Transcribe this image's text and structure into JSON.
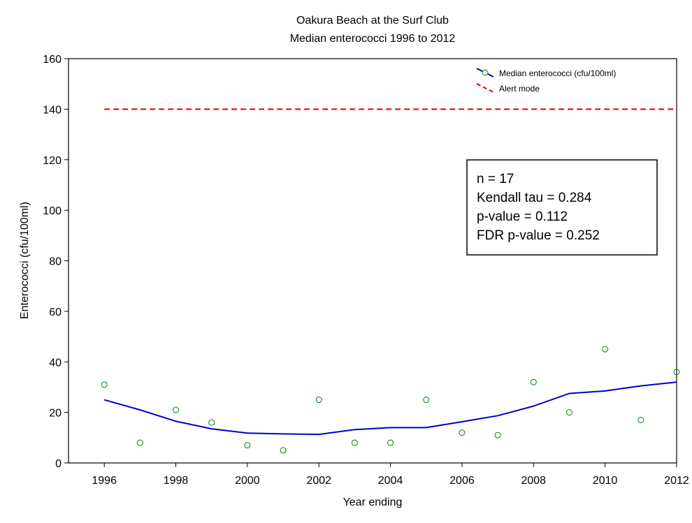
{
  "chart_data": {
    "type": "scatter",
    "title": "Oakura Beach at the Surf Club",
    "subtitle": "Median enterococci 1996 to 2012",
    "x_label": "Year ending",
    "y_label": "Enterococci (cfu/100ml)",
    "x": [
      1996,
      1997,
      1998,
      1999,
      2000,
      2001,
      2002,
      2003,
      2004,
      2005,
      2006,
      2007,
      2008,
      2009,
      2010,
      2011,
      2012
    ],
    "series": [
      {
        "name": "Median enterococci (cfu/100ml)",
        "color": "#008000",
        "line_color": "#0000cc",
        "values": [
          31,
          8,
          21,
          16,
          7,
          5,
          25,
          8,
          8,
          25,
          12,
          11,
          32,
          20,
          45,
          17,
          36
        ],
        "smooth": [
          25,
          21,
          16.5,
          13.5,
          11.8,
          11.5,
          11.3,
          13.2,
          14,
          14,
          16.3,
          18.7,
          22.5,
          27.5,
          28.5,
          30.5,
          32
        ]
      }
    ],
    "alert": {
      "name": "Alert mode",
      "value": 140,
      "color": "#e00000",
      "x": [
        1996,
        2012
      ]
    },
    "annotations": [
      "n = 17",
      "Kendall tau = 0.284",
      "p-value = 0.112",
      "FDR p-value = 0.252"
    ],
    "xlim": [
      1995,
      2012
    ],
    "ylim": [
      0,
      160
    ],
    "xticks": [
      1996,
      1998,
      2000,
      2002,
      2004,
      2006,
      2008,
      2010,
      2012
    ],
    "yticks": [
      0,
      20,
      40,
      60,
      80,
      100,
      120,
      140,
      160
    ],
    "legend": "top-right"
  }
}
